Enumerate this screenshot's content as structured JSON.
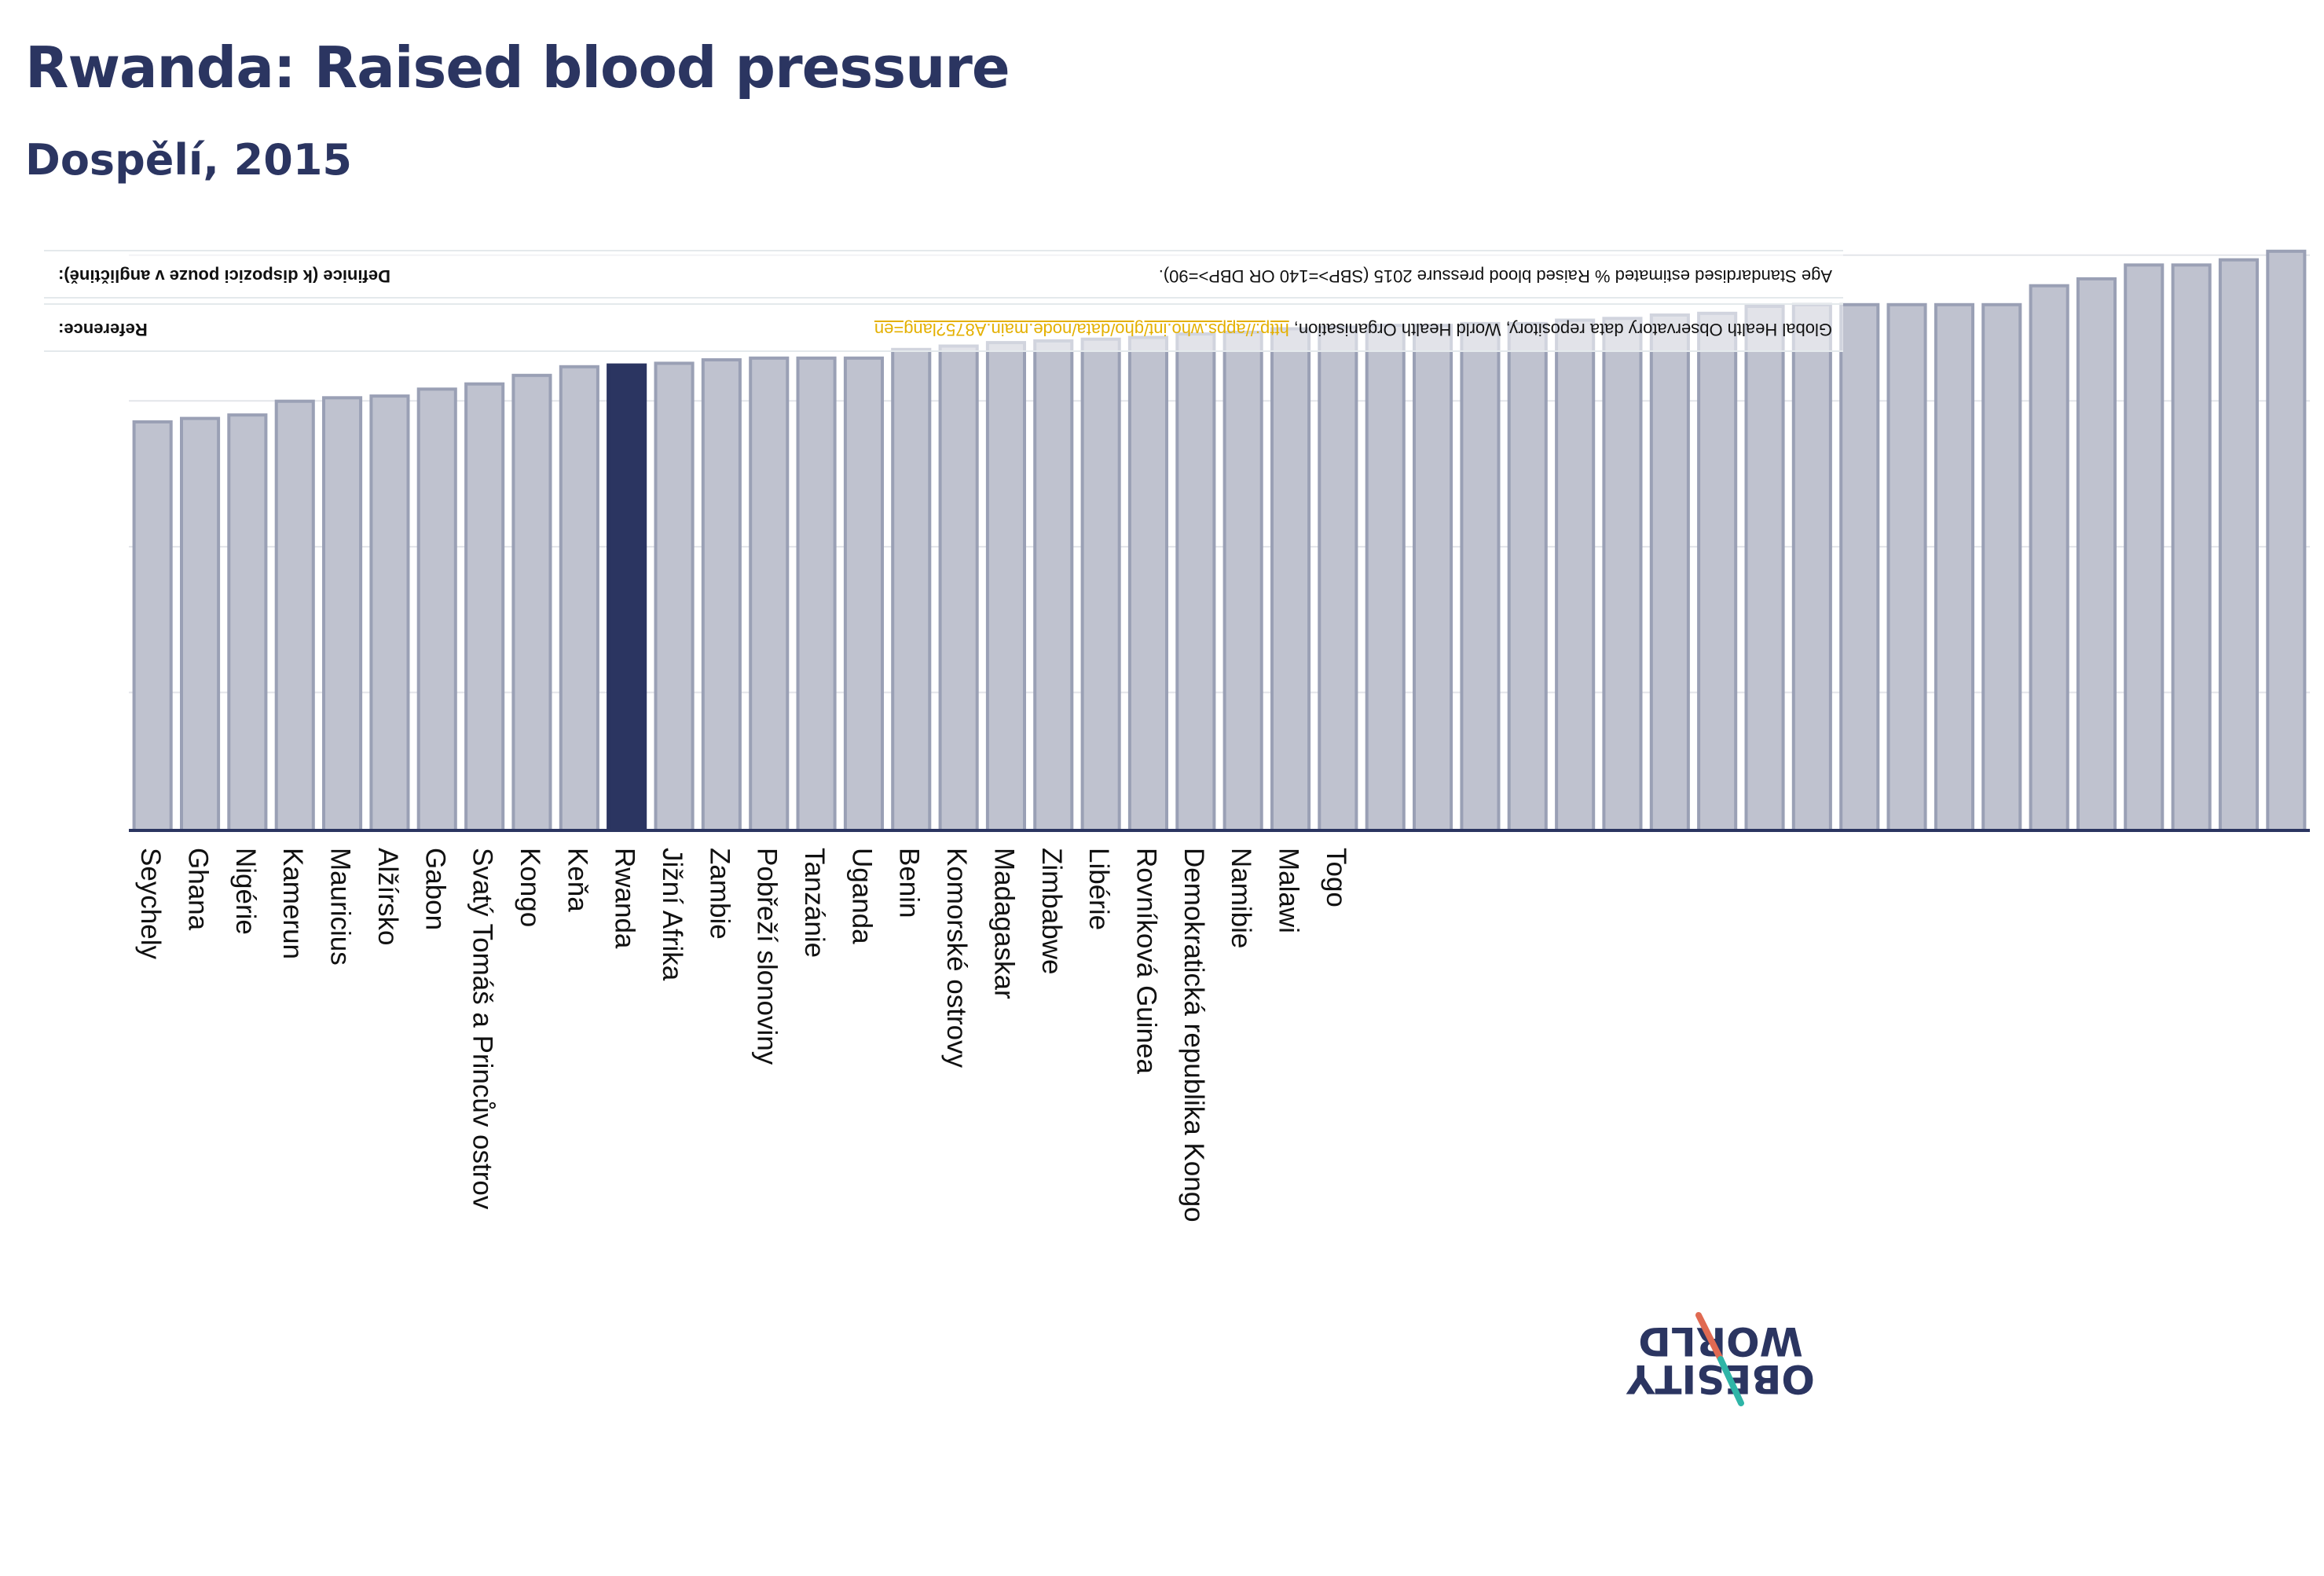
{
  "header": {
    "title": "Rwanda: Raised blood pressure",
    "subtitle": "Dospělí, 2015"
  },
  "notes": {
    "definition_label": "Definice (k dispozici pouze v angličtině):",
    "definition_text": "Age Standardised estimated % Raised blood pressure 2015 (SBP>=140 OR DBP>=90).",
    "reference_label": "Reference:",
    "reference_text": "Global Health Observatory data repository, World Health Organisation,",
    "reference_link": "http://apps.who.int/gho/data/node.main.A875?lang=en"
  },
  "logo": {
    "line1": "OBESITY",
    "line2": "WORLD",
    "colors": {
      "slash_top": "#e06a52",
      "slash_bottom": "#2fb5a7",
      "text": "#2b3561"
    }
  },
  "colors": {
    "bar": "#bfc2cf",
    "bar_border": "#9aa0b5",
    "highlight": "#2b3561",
    "axis": "#2b3561",
    "grid": "#e3e5ea"
  },
  "chart_data": {
    "type": "bar",
    "highlight": "Rwanda",
    "categories": [
      "Seychely",
      "Ghana",
      "Nigérie",
      "Kamerun",
      "Mauricius",
      "Alžírsko",
      "Gabon",
      "Svatý Tomáš a Princův ostrov",
      "Kongo",
      "Keňa",
      "Rwanda",
      "Jižní Afrika",
      "Zambie",
      "Pobřeží slonoviny",
      "Tanzánie",
      "Uganda",
      "Benin",
      "Komorské ostrovy",
      "Madagaskar",
      "Zimbabwe",
      "Libérie",
      "Rovníková Guinea",
      "Demokratická republika Kongo",
      "Namibie",
      "Malawi",
      "Togo",
      "",
      "",
      "",
      "",
      "",
      "",
      "",
      "",
      "",
      "",
      "",
      "",
      "",
      "",
      "",
      "",
      "",
      "",
      "",
      ""
    ],
    "values": [
      23.7,
      23.9,
      24.1,
      24.9,
      25.1,
      25.2,
      25.6,
      25.9,
      26.4,
      26.9,
      27.0,
      27.1,
      27.3,
      27.4,
      27.4,
      27.4,
      27.9,
      28.1,
      28.3,
      28.4,
      28.5,
      28.6,
      28.8,
      28.9,
      29.1,
      29.2,
      29.3,
      29.3,
      29.4,
      29.4,
      29.6,
      29.7,
      29.9,
      30.0,
      30.4,
      30.5,
      30.5,
      30.5,
      30.5,
      30.5,
      31.6,
      32.0,
      32.8,
      32.8,
      33.1,
      33.6
    ],
    "ylim": [
      0,
      34
    ],
    "grid": true,
    "xlabel": "",
    "ylabel": ""
  }
}
